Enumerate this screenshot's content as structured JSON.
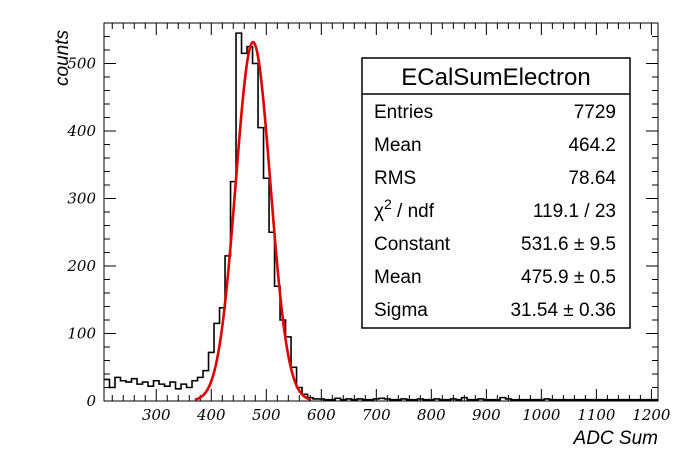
{
  "chart_data": {
    "type": "histogram",
    "xlabel": "ADC Sum",
    "ylabel": "counts",
    "xlim": [
      205,
      1212
    ],
    "ylim": [
      0,
      560
    ],
    "x_ticks": [
      300,
      400,
      500,
      600,
      700,
      800,
      900,
      1000,
      1100,
      1200
    ],
    "y_ticks": [
      0,
      100,
      200,
      300,
      400,
      500
    ],
    "bin_width": 10,
    "bins_x_start": [
      205,
      215,
      225,
      235,
      245,
      255,
      265,
      275,
      285,
      295,
      305,
      315,
      325,
      335,
      345,
      355,
      365,
      375,
      385,
      395,
      405,
      415,
      425,
      435,
      445,
      455,
      465,
      475,
      485,
      495,
      505,
      515,
      525,
      535,
      545,
      555,
      565,
      575,
      585,
      595,
      605,
      615,
      625,
      635,
      645,
      655,
      665,
      675,
      685,
      695,
      705,
      715,
      725,
      735,
      745,
      755,
      765,
      775,
      785,
      795,
      805,
      815,
      825,
      835,
      845,
      855,
      865,
      875,
      885,
      895,
      905,
      915,
      925,
      935,
      945,
      955,
      965,
      975,
      985,
      995,
      1005,
      1015,
      1025,
      1035,
      1045,
      1055,
      1065,
      1075,
      1085,
      1095,
      1105,
      1115,
      1125,
      1135,
      1145,
      1155,
      1165,
      1175,
      1185,
      1195,
      1205
    ],
    "values": [
      32,
      20,
      35,
      30,
      28,
      33,
      25,
      28,
      22,
      30,
      25,
      22,
      28,
      18,
      25,
      20,
      30,
      35,
      45,
      72,
      115,
      138,
      215,
      325,
      545,
      515,
      525,
      500,
      405,
      330,
      250,
      170,
      120,
      95,
      50,
      20,
      10,
      5,
      3,
      3,
      2,
      2,
      4,
      2,
      3,
      2,
      3,
      2,
      2,
      3,
      4,
      3,
      2,
      2,
      3,
      2,
      2,
      3,
      2,
      2,
      3,
      2,
      2,
      3,
      2,
      5,
      2,
      2,
      3,
      2,
      2,
      2,
      5,
      3,
      2,
      2,
      2,
      2,
      2,
      2,
      3,
      2,
      2,
      2,
      2,
      2,
      2,
      2,
      2,
      2,
      2,
      2,
      2,
      2,
      2,
      2,
      2,
      2,
      2,
      2,
      2
    ],
    "fit": {
      "function": "gaus",
      "constant": 531.6,
      "mean": 475.9,
      "sigma": 31.54,
      "x_range": [
        370,
        580
      ],
      "color": "#e00000"
    },
    "histogram_color": "#000000",
    "stats_box": {
      "title": "ECalSumElectron",
      "rows": [
        {
          "label": "Entries",
          "value": "7729"
        },
        {
          "label": "Mean",
          "value": "464.2"
        },
        {
          "label": "RMS",
          "value": "78.64"
        },
        {
          "label": "χ2 / ndf",
          "value": "119.1 / 23"
        },
        {
          "label": "Constant",
          "value": "531.6 ± 9.5"
        },
        {
          "label": "Mean",
          "value": "475.9 ± 0.5"
        },
        {
          "label": "Sigma",
          "value": "31.54 ± 0.36"
        }
      ]
    }
  }
}
